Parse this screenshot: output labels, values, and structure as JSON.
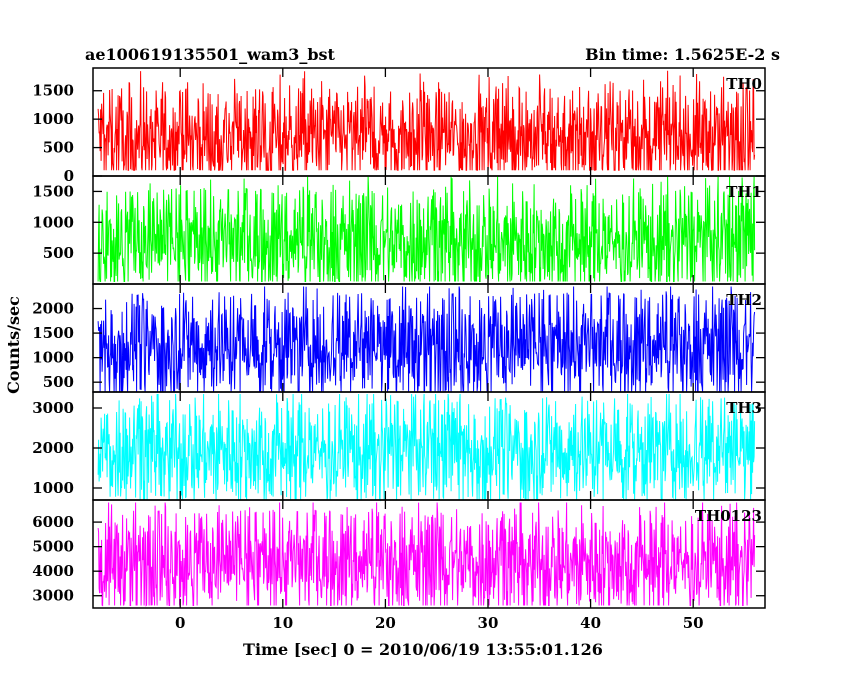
{
  "header": {
    "left_title": "ae100619135501_wam3_bst",
    "right_title": "Bin time: 1.5625E-2 s"
  },
  "chart_data": {
    "type": "line",
    "title": "ae100619135501_wam3_bst",
    "subtitle": "Bin time: 1.5625E-2 s",
    "xlabel": "Time [sec] 0 = 2010/06/19 13:55:01.126",
    "ylabel": "Counts/sec",
    "xlim": [
      -8.5,
      57
    ],
    "x_data_range": [
      -8,
      56
    ],
    "x_ticks": [
      0,
      10,
      20,
      30,
      40,
      50
    ],
    "x_tick_labels": [
      "0",
      "10",
      "20",
      "30",
      "40",
      "50"
    ],
    "grid": false,
    "series": [
      {
        "name": "TH0",
        "color": "#ff0000",
        "ylim": [
          0,
          1900
        ],
        "y_ticks": [
          0,
          500,
          1000,
          1500
        ],
        "y_tick_labels": [
          "0",
          "500",
          "1000",
          "1500"
        ],
        "baseline": 700,
        "envelope_min": 100,
        "envelope_max": 1850
      },
      {
        "name": "TH1",
        "color": "#00ff00",
        "ylim": [
          0,
          1750
        ],
        "y_ticks": [
          500,
          1000,
          1500
        ],
        "y_tick_labels": [
          "500",
          "1000",
          "1500"
        ],
        "baseline": 700,
        "envelope_min": 40,
        "envelope_max": 1750
      },
      {
        "name": "TH2",
        "color": "#0000ff",
        "ylim": [
          300,
          2500
        ],
        "y_ticks": [
          500,
          1000,
          1500,
          2000
        ],
        "y_tick_labels": [
          "500",
          "1000",
          "1500",
          "2000"
        ],
        "baseline": 1250,
        "envelope_min": 300,
        "envelope_max": 2450
      },
      {
        "name": "TH3",
        "color": "#00ffff",
        "ylim": [
          700,
          3400
        ],
        "y_ticks": [
          1000,
          2000,
          3000
        ],
        "y_tick_labels": [
          "1000",
          "2000",
          "3000"
        ],
        "baseline": 1950,
        "envelope_min": 700,
        "envelope_max": 3350
      },
      {
        "name": "TH0123",
        "color": "#ff00ff",
        "ylim": [
          2500,
          6900
        ],
        "y_ticks": [
          3000,
          4000,
          5000,
          6000
        ],
        "y_tick_labels": [
          "3000",
          "4000",
          "5000",
          "6000"
        ],
        "baseline": 4400,
        "envelope_min": 2600,
        "envelope_max": 6800
      }
    ]
  }
}
